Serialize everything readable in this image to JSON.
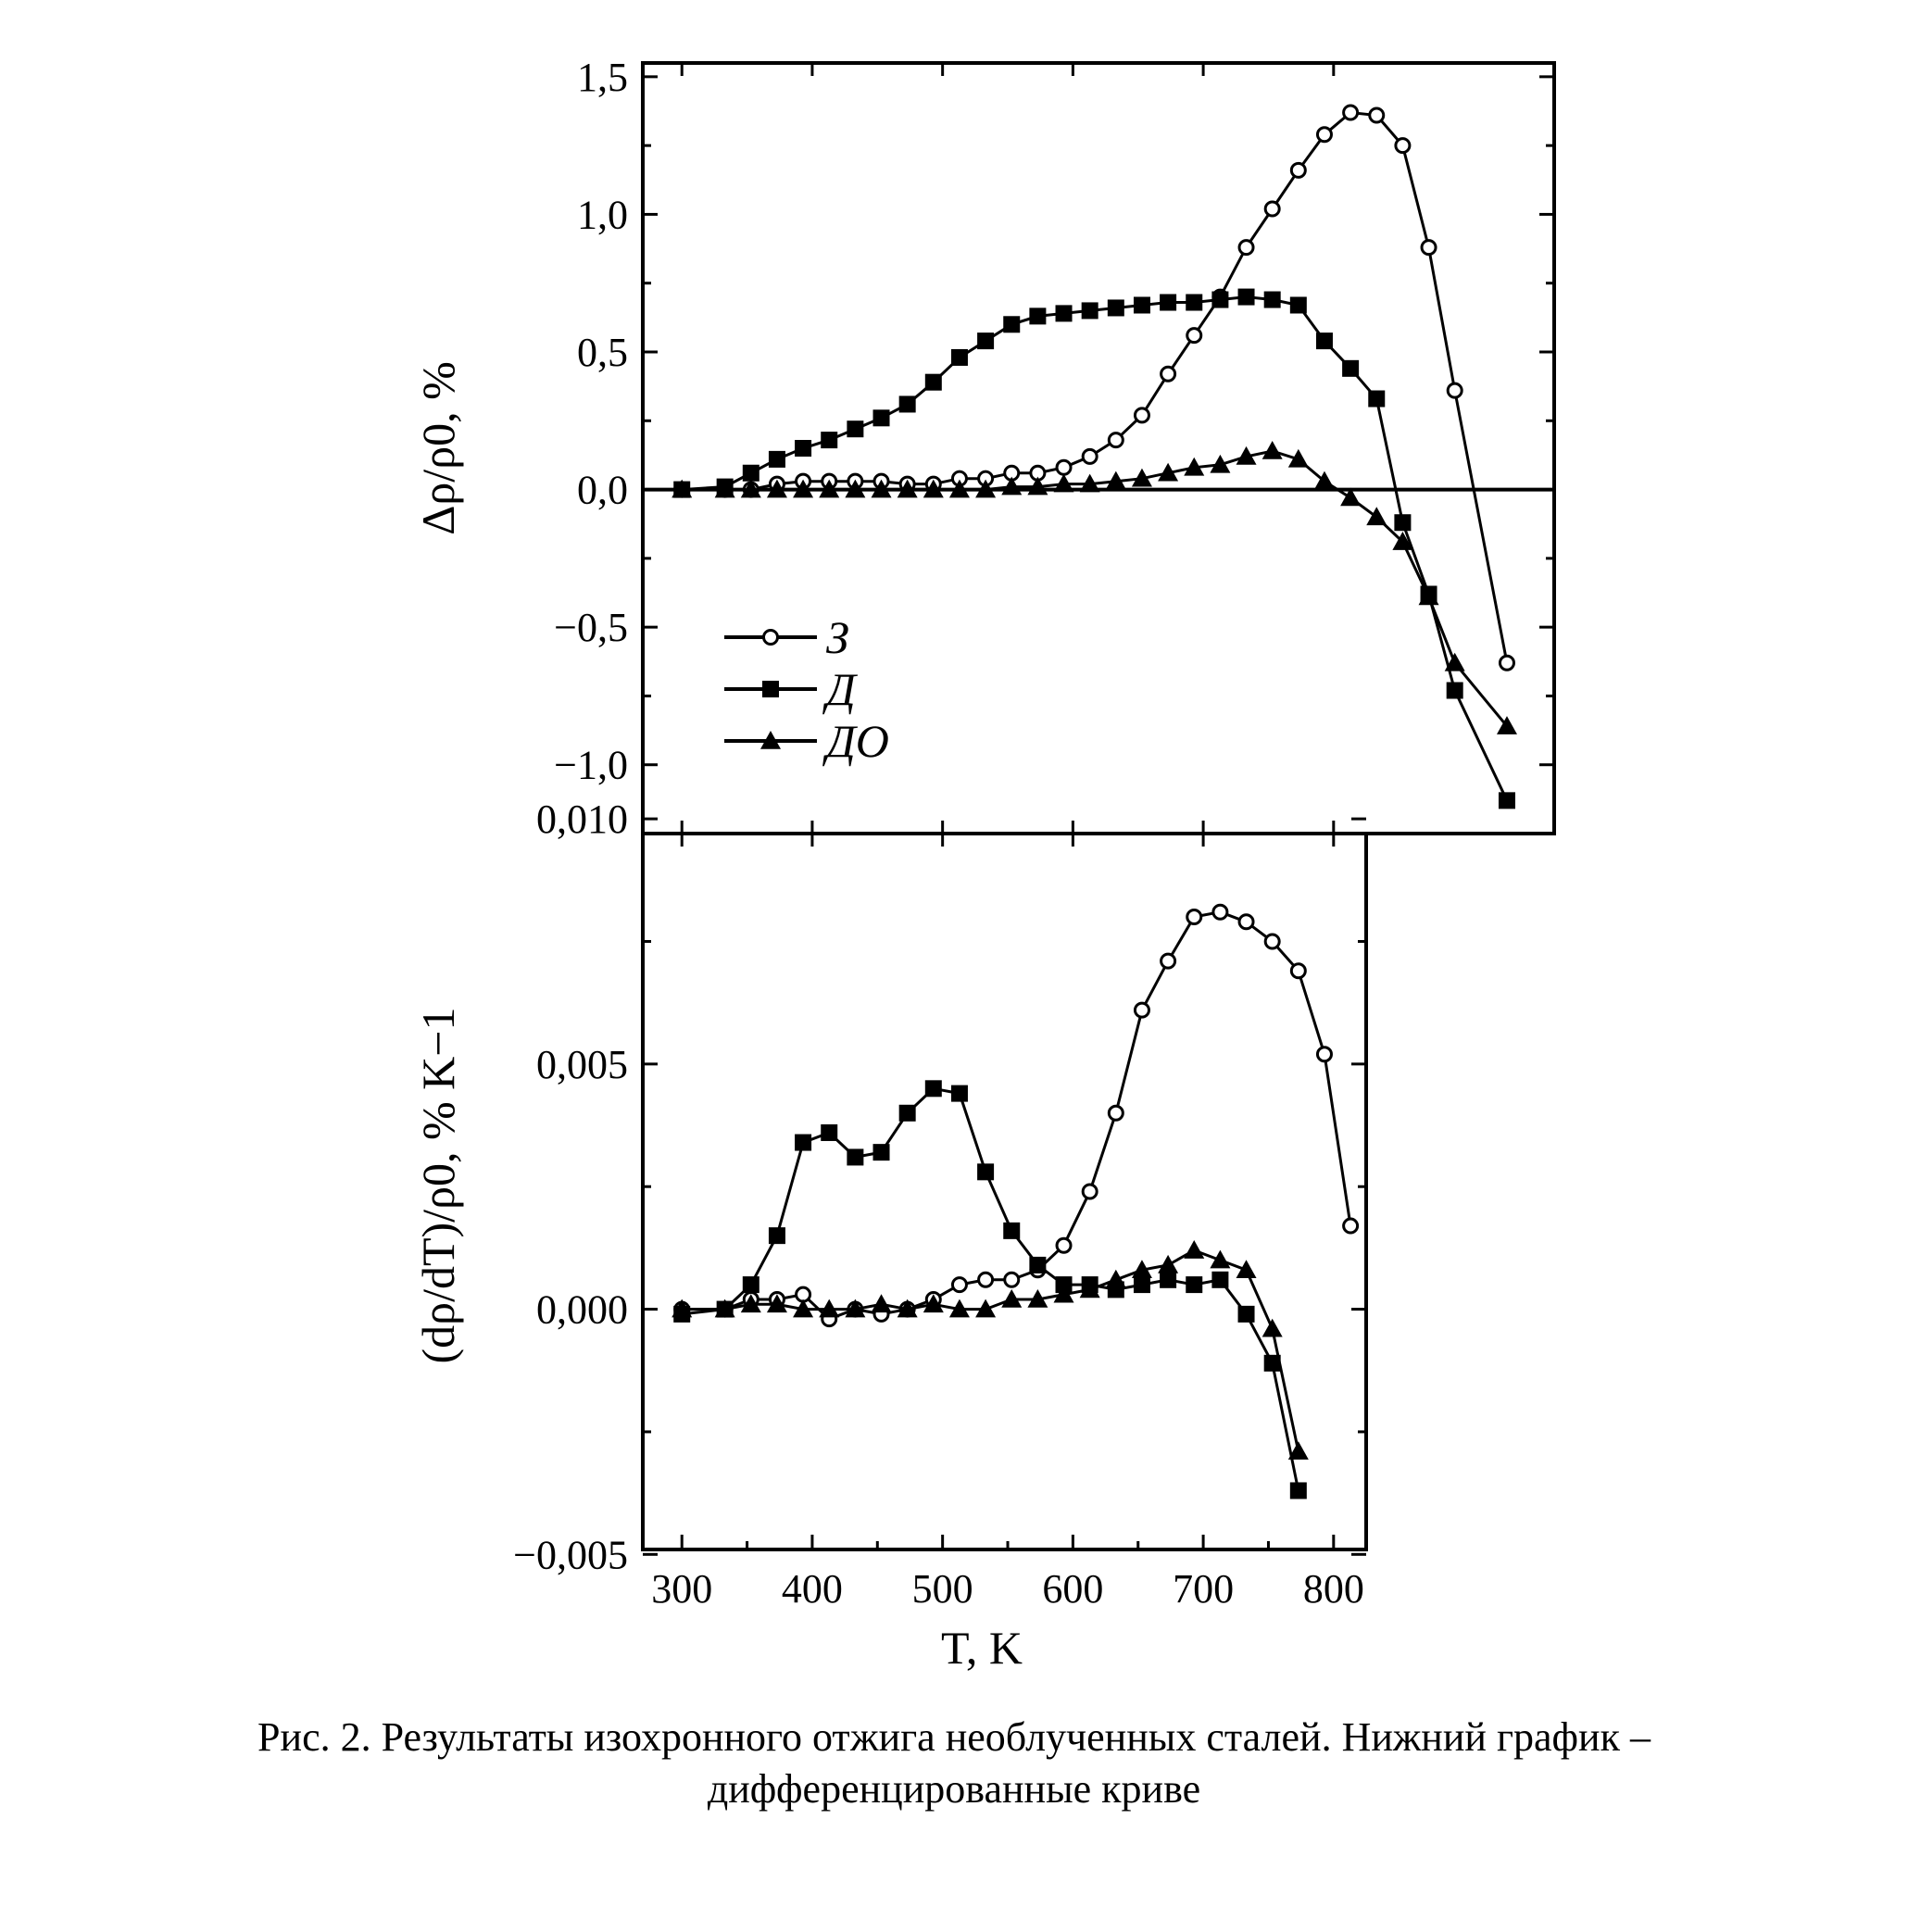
{
  "caption": {
    "line1": "Рис. 2. Результаты изохронного отжига необлученных сталей. Нижний график –",
    "line2": "дифференцированные криве"
  },
  "chart_data": [
    {
      "type": "line",
      "ylabel": "Δρ/ρ0, %",
      "ylim": [
        -1.25,
        1.55
      ],
      "yticks": [
        1.5,
        1.0,
        0.5,
        0.0,
        -0.5,
        -1.0
      ],
      "yticklabels": [
        "1,5",
        "1,0",
        "0,5",
        "0,0",
        "−0,5",
        "−1,0"
      ],
      "zero_line": true,
      "legend_position": "lower-left",
      "series": [
        {
          "name": "З",
          "marker": "open-circle",
          "points": [
            [
              300,
              0.0
            ],
            [
              333,
              0.0
            ],
            [
              353,
              0.0
            ],
            [
              373,
              0.02
            ],
            [
              393,
              0.03
            ],
            [
              413,
              0.03
            ],
            [
              433,
              0.03
            ],
            [
              453,
              0.03
            ],
            [
              473,
              0.02
            ],
            [
              493,
              0.02
            ],
            [
              513,
              0.04
            ],
            [
              533,
              0.04
            ],
            [
              553,
              0.06
            ],
            [
              573,
              0.06
            ],
            [
              593,
              0.08
            ],
            [
              613,
              0.12
            ],
            [
              633,
              0.18
            ],
            [
              653,
              0.27
            ],
            [
              673,
              0.42
            ],
            [
              693,
              0.56
            ],
            [
              713,
              0.7
            ],
            [
              733,
              0.88
            ],
            [
              753,
              1.02
            ],
            [
              773,
              1.16
            ],
            [
              793,
              1.29
            ],
            [
              813,
              1.37
            ],
            [
              833,
              1.36
            ],
            [
              853,
              1.25
            ],
            [
              873,
              0.88
            ],
            [
              893,
              0.36
            ],
            [
              933,
              -0.63
            ]
          ]
        },
        {
          "name": "Д",
          "marker": "filled-square",
          "points": [
            [
              300,
              0.0
            ],
            [
              333,
              0.01
            ],
            [
              353,
              0.06
            ],
            [
              373,
              0.11
            ],
            [
              393,
              0.15
            ],
            [
              413,
              0.18
            ],
            [
              433,
              0.22
            ],
            [
              453,
              0.26
            ],
            [
              473,
              0.31
            ],
            [
              493,
              0.39
            ],
            [
              513,
              0.48
            ],
            [
              533,
              0.54
            ],
            [
              553,
              0.6
            ],
            [
              573,
              0.63
            ],
            [
              593,
              0.64
            ],
            [
              613,
              0.65
            ],
            [
              633,
              0.66
            ],
            [
              653,
              0.67
            ],
            [
              673,
              0.68
            ],
            [
              693,
              0.68
            ],
            [
              713,
              0.69
            ],
            [
              733,
              0.7
            ],
            [
              753,
              0.69
            ],
            [
              773,
              0.67
            ],
            [
              793,
              0.54
            ],
            [
              813,
              0.44
            ],
            [
              833,
              0.33
            ],
            [
              853,
              -0.12
            ],
            [
              873,
              -0.38
            ],
            [
              893,
              -0.73
            ],
            [
              933,
              -1.13
            ]
          ]
        },
        {
          "name": "ДО",
          "marker": "filled-triangle",
          "points": [
            [
              300,
              0.0
            ],
            [
              333,
              0.0
            ],
            [
              353,
              0.0
            ],
            [
              373,
              0.0
            ],
            [
              393,
              0.0
            ],
            [
              413,
              0.0
            ],
            [
              433,
              0.0
            ],
            [
              453,
              0.0
            ],
            [
              473,
              0.0
            ],
            [
              493,
              0.0
            ],
            [
              513,
              0.0
            ],
            [
              533,
              0.0
            ],
            [
              553,
              0.01
            ],
            [
              573,
              0.01
            ],
            [
              593,
              0.02
            ],
            [
              613,
              0.02
            ],
            [
              633,
              0.03
            ],
            [
              653,
              0.04
            ],
            [
              673,
              0.06
            ],
            [
              693,
              0.08
            ],
            [
              713,
              0.09
            ],
            [
              733,
              0.12
            ],
            [
              753,
              0.14
            ],
            [
              773,
              0.11
            ],
            [
              793,
              0.03
            ],
            [
              813,
              -0.03
            ],
            [
              833,
              -0.1
            ],
            [
              853,
              -0.19
            ],
            [
              873,
              -0.39
            ],
            [
              893,
              -0.63
            ],
            [
              933,
              -0.86
            ]
          ]
        }
      ]
    },
    {
      "type": "line",
      "xlabel": "T, K",
      "ylabel": "(dρ/dT)/ρ0, % K−1",
      "xlim": [
        270,
        825
      ],
      "xticks": [
        300,
        400,
        500,
        600,
        700,
        800
      ],
      "ylim": [
        -0.0049,
        0.0097
      ],
      "yticks": [
        0.01,
        0.005,
        0.0,
        -0.005
      ],
      "yticklabels": [
        "0,010",
        "0,005",
        "0,000",
        "−0,005"
      ],
      "series": [
        {
          "name": "З",
          "marker": "open-circle",
          "points": [
            [
              300,
              0.0
            ],
            [
              333,
              0.0
            ],
            [
              353,
              0.0002
            ],
            [
              373,
              0.0002
            ],
            [
              393,
              0.0003
            ],
            [
              413,
              -0.0002
            ],
            [
              433,
              0.0
            ],
            [
              453,
              -0.0001
            ],
            [
              473,
              0.0
            ],
            [
              493,
              0.0002
            ],
            [
              513,
              0.0005
            ],
            [
              533,
              0.0006
            ],
            [
              553,
              0.0006
            ],
            [
              573,
              0.0008
            ],
            [
              593,
              0.0013
            ],
            [
              613,
              0.0024
            ],
            [
              633,
              0.004
            ],
            [
              653,
              0.0061
            ],
            [
              673,
              0.0071
            ],
            [
              693,
              0.008
            ],
            [
              713,
              0.0081
            ],
            [
              733,
              0.0079
            ],
            [
              753,
              0.0075
            ],
            [
              773,
              0.0069
            ],
            [
              793,
              0.0052
            ],
            [
              813,
              0.0017
            ]
          ]
        },
        {
          "name": "Д",
          "marker": "filled-square",
          "points": [
            [
              300,
              -0.0001
            ],
            [
              333,
              0.0
            ],
            [
              353,
              0.0005
            ],
            [
              373,
              0.0015
            ],
            [
              393,
              0.0034
            ],
            [
              413,
              0.0036
            ],
            [
              433,
              0.0031
            ],
            [
              453,
              0.0032
            ],
            [
              473,
              0.004
            ],
            [
              493,
              0.0045
            ],
            [
              513,
              0.0044
            ],
            [
              533,
              0.0028
            ],
            [
              553,
              0.0016
            ],
            [
              573,
              0.0009
            ],
            [
              593,
              0.0005
            ],
            [
              613,
              0.0005
            ],
            [
              633,
              0.0004
            ],
            [
              653,
              0.0005
            ],
            [
              673,
              0.0006
            ],
            [
              693,
              0.0005
            ],
            [
              713,
              0.0006
            ],
            [
              733,
              -0.0001
            ],
            [
              753,
              -0.0011
            ],
            [
              773,
              -0.0037
            ]
          ]
        },
        {
          "name": "ДО",
          "marker": "filled-triangle",
          "points": [
            [
              300,
              0.0
            ],
            [
              333,
              0.0
            ],
            [
              353,
              0.0001
            ],
            [
              373,
              0.0001
            ],
            [
              393,
              0.0
            ],
            [
              413,
              0.0
            ],
            [
              433,
              0.0
            ],
            [
              453,
              0.0001
            ],
            [
              473,
              0.0
            ],
            [
              493,
              0.0001
            ],
            [
              513,
              0.0
            ],
            [
              533,
              0.0
            ],
            [
              553,
              0.0002
            ],
            [
              573,
              0.0002
            ],
            [
              593,
              0.0003
            ],
            [
              613,
              0.0004
            ],
            [
              633,
              0.0006
            ],
            [
              653,
              0.0008
            ],
            [
              673,
              0.0009
            ],
            [
              693,
              0.0012
            ],
            [
              713,
              0.001
            ],
            [
              733,
              0.0008
            ],
            [
              753,
              -0.0004
            ],
            [
              773,
              -0.0029
            ]
          ]
        }
      ]
    }
  ]
}
